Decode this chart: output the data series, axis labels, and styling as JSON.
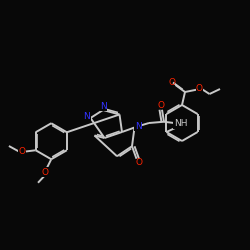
{
  "background": "#080808",
  "bond_color": "#c8c8c8",
  "nitrogen_color": "#3333ff",
  "oxygen_color": "#ff2200",
  "bond_width": 1.4,
  "dbo": 0.06,
  "figsize": [
    2.5,
    2.5
  ],
  "dpi": 100,
  "xlim": [
    0,
    10
  ],
  "ylim": [
    0,
    10
  ]
}
